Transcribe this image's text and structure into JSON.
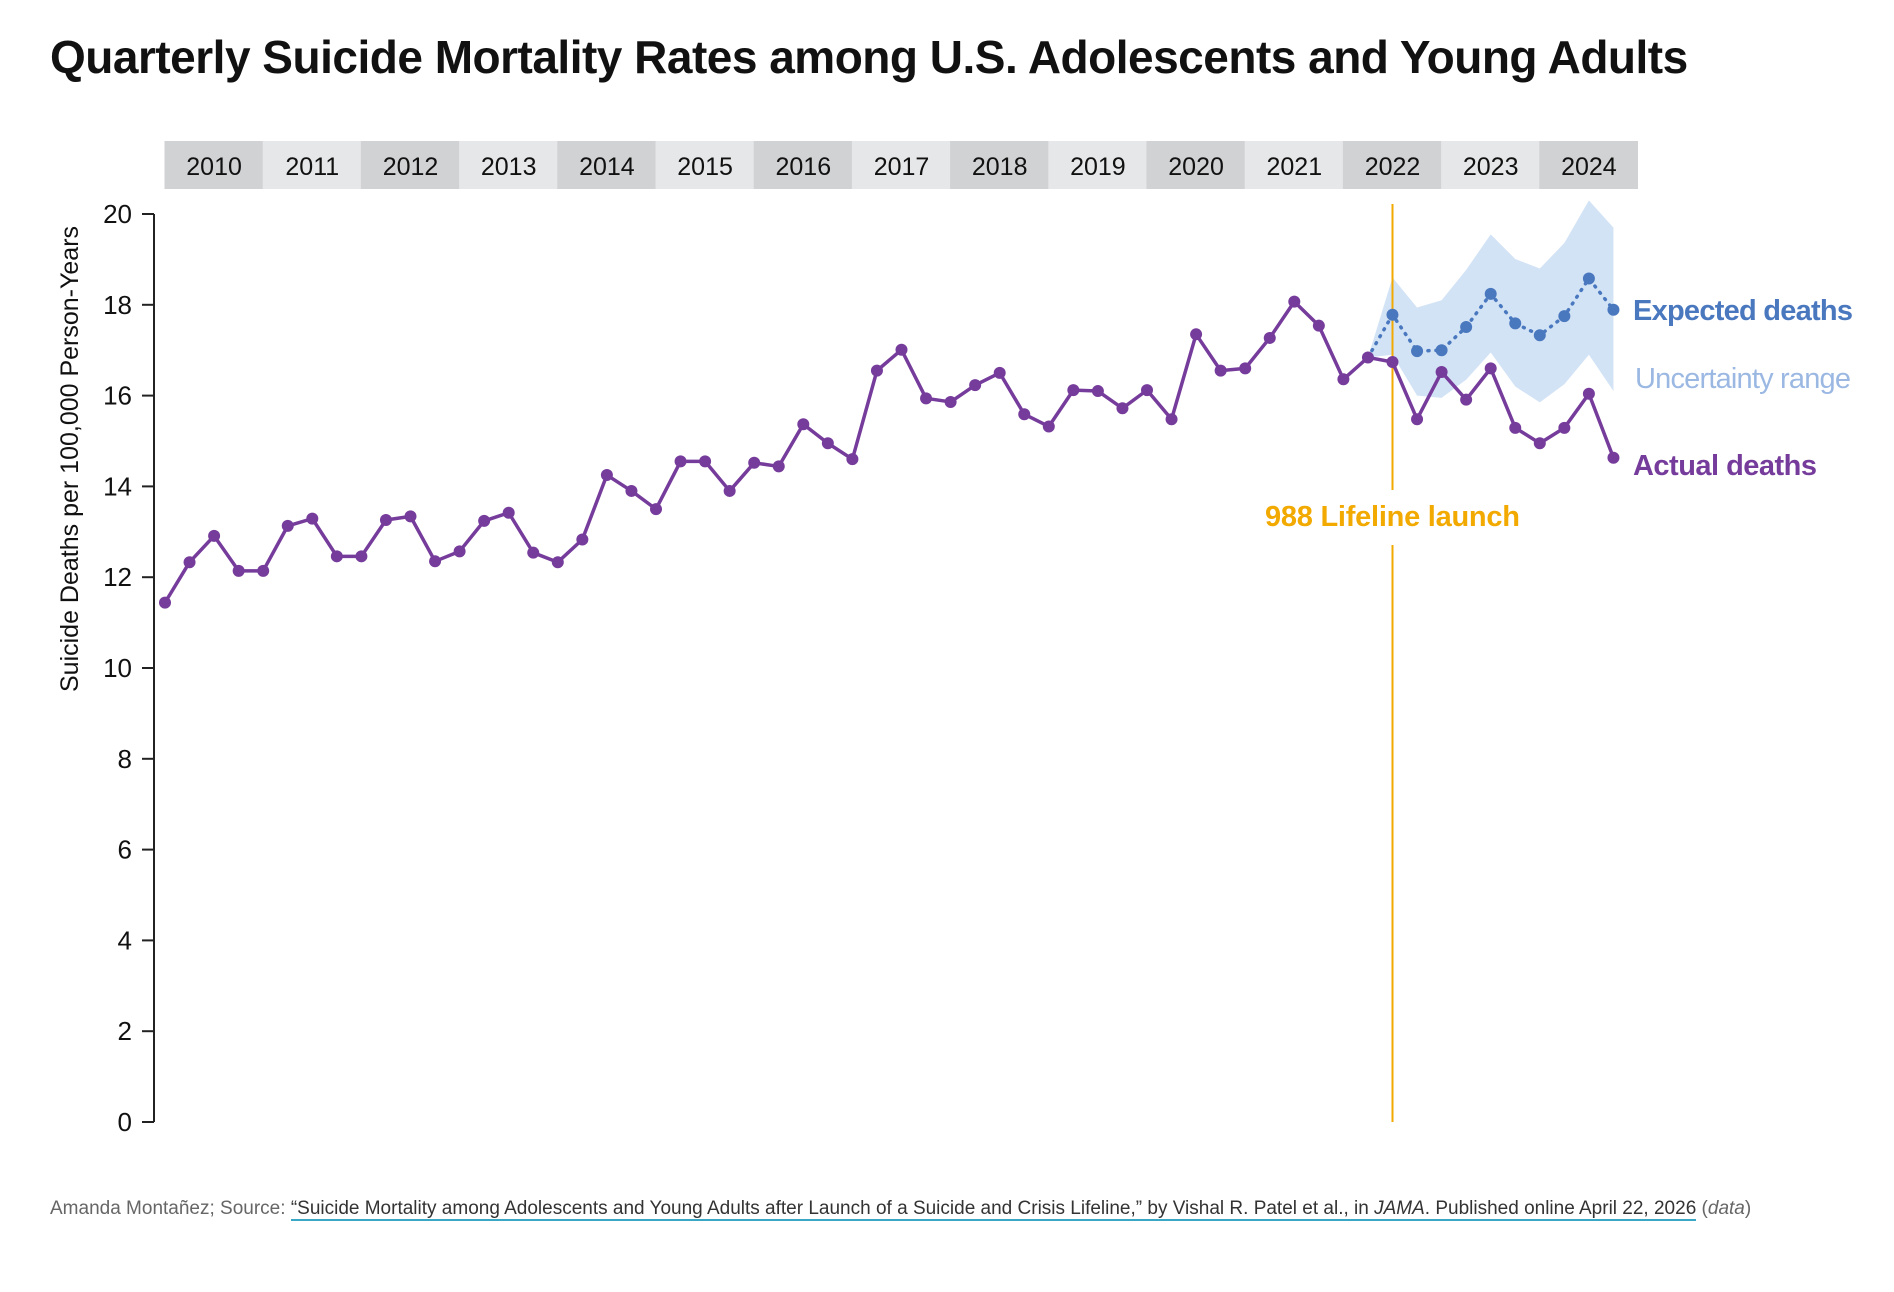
{
  "title": "Quarterly Suicide Mortality Rates among U.S. Adolescents and Young Adults",
  "footer": {
    "credit": "Amanda Montañez; Source: ",
    "link_text": "“Suicide Mortality among Adolescents and Young Adults after Launch of a Suicide and Crisis Lifeline,” by Vishal R. Patel et al., in ",
    "journal": "JAMA",
    "link_text_2": ". Published online April 22, 2026",
    "data_open": " (",
    "data_label": "data",
    "data_close": ")"
  },
  "chart_data": {
    "type": "line",
    "title": "Quarterly Suicide Mortality Rates among U.S. Adolescents and Young Adults",
    "ylabel": "Suicide Deaths per 100,000 Person-Years",
    "xlabel": "",
    "ylim": [
      0,
      20
    ],
    "yticks": [
      0,
      2,
      4,
      6,
      8,
      10,
      12,
      14,
      16,
      18,
      20
    ],
    "years": [
      "2010",
      "2011",
      "2012",
      "2013",
      "2014",
      "2015",
      "2016",
      "2017",
      "2018",
      "2019",
      "2020",
      "2021",
      "2022",
      "2023",
      "2024"
    ],
    "x_unit": "quarter (Q1 2010 – Q4 2024)",
    "grid": false,
    "annotation": {
      "label": "988 Lifeline launch",
      "at_quarter": "2022 Q3",
      "color": "#f2a900"
    },
    "series": [
      {
        "name": "Actual deaths",
        "color": "#763c9b",
        "start": "2010 Q1",
        "values": [
          11.44,
          12.33,
          12.91,
          12.14,
          12.14,
          13.13,
          13.29,
          12.46,
          12.46,
          13.26,
          13.34,
          12.35,
          12.57,
          13.24,
          13.42,
          12.54,
          12.33,
          12.83,
          14.25,
          13.9,
          13.5,
          14.55,
          14.55,
          13.9,
          14.52,
          14.44,
          15.37,
          14.95,
          14.6,
          16.55,
          17.01,
          15.94,
          15.86,
          16.23,
          16.5,
          15.59,
          15.32,
          16.12,
          16.1,
          15.72,
          16.12,
          15.48,
          17.35,
          16.55,
          16.6,
          17.27,
          18.07,
          17.54,
          16.36,
          16.84,
          16.74,
          15.48,
          16.52,
          15.91,
          16.6,
          15.29,
          14.95,
          15.29,
          16.04,
          14.63
        ]
      },
      {
        "name": "Expected deaths",
        "color": "#4a78bf",
        "start": "2022 Q2",
        "values": [
          16.84,
          17.78,
          16.98,
          17.0,
          17.51,
          18.24,
          17.59,
          17.33,
          17.75,
          18.58,
          17.89
        ]
      },
      {
        "name": "Uncertainty range",
        "color": "#d3e3f6",
        "start": "2022 Q2",
        "upper": [
          16.84,
          18.6,
          17.94,
          18.1,
          18.77,
          19.55,
          19.01,
          18.8,
          19.36,
          20.3,
          19.7
        ],
        "lower": [
          16.84,
          16.9,
          16.0,
          15.95,
          16.35,
          16.95,
          16.2,
          15.85,
          16.25,
          16.9,
          16.1
        ]
      }
    ]
  }
}
